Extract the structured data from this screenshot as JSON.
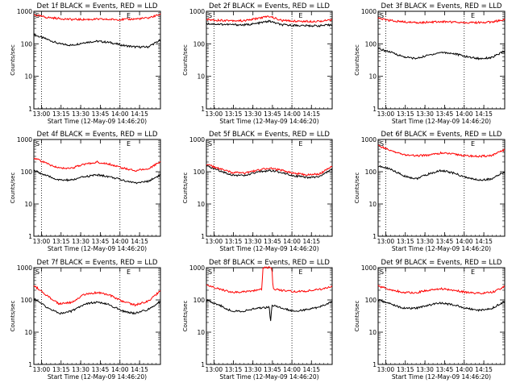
{
  "page": {
    "colors": {
      "events": "#000000",
      "lld": "#ff0000",
      "axis": "#000000",
      "background": "#ffffff"
    },
    "grid": "vertical-dotted-at-13:00-and-16:00"
  },
  "chart_data": [
    {
      "type": "line",
      "title": "Det 1f BLACK = Events, RED = LLD",
      "xlabel": "Start Time (12-May-09 14:46:20)",
      "ylabel": "Counts/sec",
      "yscale": "log",
      "ylim": [
        1,
        1000
      ],
      "ytick_labels": [
        "1",
        "10",
        "100",
        "1000"
      ],
      "xtick_labels": [
        "13:00",
        "13:15",
        "13:30",
        "13:45",
        "14:00",
        "14:15"
      ],
      "x_markers": [
        "S",
        "E"
      ],
      "series": [
        {
          "name": "Events",
          "color": "#000000",
          "x": [
            0,
            0.1,
            0.2,
            0.3,
            0.4,
            0.5,
            0.6,
            0.7,
            0.8,
            0.9,
            1
          ],
          "values": [
            190,
            140,
            100,
            90,
            110,
            120,
            110,
            90,
            80,
            80,
            130
          ]
        },
        {
          "name": "LLD",
          "color": "#ff0000",
          "x": [
            0,
            0.1,
            0.2,
            0.3,
            0.4,
            0.5,
            0.6,
            0.7,
            0.8,
            0.9,
            1
          ],
          "values": [
            780,
            650,
            600,
            560,
            560,
            570,
            560,
            560,
            580,
            620,
            800
          ]
        }
      ]
    },
    {
      "type": "line",
      "title": "Det 2f BLACK = Events, RED = LLD",
      "xlabel": "Start Time (12-May-09 14:46:20)",
      "ylabel": "Counts/sec",
      "yscale": "log",
      "ylim": [
        1,
        1000
      ],
      "ytick_labels": [
        "1",
        "10",
        "100",
        "1000"
      ],
      "xtick_labels": [
        "13:00",
        "13:15",
        "13:30",
        "13:45",
        "14:00",
        "14:15"
      ],
      "x_markers": [
        "S",
        "E"
      ],
      "series": [
        {
          "name": "Events",
          "color": "#000000",
          "x": [
            0,
            0.1,
            0.2,
            0.3,
            0.4,
            0.5,
            0.6,
            0.7,
            0.8,
            0.9,
            1
          ],
          "values": [
            420,
            400,
            390,
            380,
            420,
            500,
            380,
            370,
            360,
            360,
            380
          ]
        },
        {
          "name": "LLD",
          "color": "#ff0000",
          "x": [
            0,
            0.1,
            0.2,
            0.3,
            0.4,
            0.5,
            0.6,
            0.7,
            0.8,
            0.9,
            1
          ],
          "values": [
            560,
            530,
            520,
            510,
            600,
            700,
            520,
            500,
            490,
            500,
            540
          ]
        }
      ]
    },
    {
      "type": "line",
      "title": "Det 3f BLACK = Events, RED = LLD",
      "xlabel": "Start Time (12-May-09 14:46:20)",
      "ylabel": "Counts/sec",
      "yscale": "log",
      "ylim": [
        1,
        1000
      ],
      "ytick_labels": [
        "1",
        "10",
        "100",
        "1000"
      ],
      "xtick_labels": [
        "13:00",
        "13:15",
        "13:30",
        "13:45",
        "14:00",
        "14:15"
      ],
      "x_markers": [
        "S",
        "E"
      ],
      "series": [
        {
          "name": "Events",
          "color": "#000000",
          "x": [
            0,
            0.1,
            0.2,
            0.3,
            0.4,
            0.5,
            0.6,
            0.7,
            0.8,
            0.9,
            1
          ],
          "values": [
            70,
            55,
            40,
            35,
            45,
            55,
            50,
            40,
            35,
            38,
            60
          ]
        },
        {
          "name": "LLD",
          "color": "#ff0000",
          "x": [
            0,
            0.1,
            0.2,
            0.3,
            0.4,
            0.5,
            0.6,
            0.7,
            0.8,
            0.9,
            1
          ],
          "values": [
            600,
            520,
            470,
            450,
            460,
            480,
            470,
            450,
            450,
            470,
            560
          ]
        }
      ]
    },
    {
      "type": "line",
      "title": "Det 4f BLACK = Events, RED = LLD",
      "xlabel": "Start Time (12-May-09 14:46:20)",
      "ylabel": "Counts/sec",
      "yscale": "log",
      "ylim": [
        1,
        1000
      ],
      "ytick_labels": [
        "1",
        "10",
        "100",
        "1000"
      ],
      "xtick_labels": [
        "13:00",
        "13:15",
        "13:30",
        "13:45",
        "14:00",
        "14:15"
      ],
      "x_markers": [
        "S",
        "E"
      ],
      "series": [
        {
          "name": "Events",
          "color": "#000000",
          "x": [
            0,
            0.1,
            0.2,
            0.3,
            0.4,
            0.5,
            0.6,
            0.7,
            0.8,
            0.9,
            1
          ],
          "values": [
            110,
            75,
            55,
            55,
            70,
            80,
            70,
            55,
            45,
            50,
            80
          ]
        },
        {
          "name": "LLD",
          "color": "#ff0000",
          "x": [
            0,
            0.1,
            0.2,
            0.3,
            0.4,
            0.5,
            0.6,
            0.7,
            0.8,
            0.9,
            1
          ],
          "values": [
            270,
            180,
            130,
            130,
            170,
            200,
            170,
            130,
            110,
            120,
            210
          ]
        }
      ]
    },
    {
      "type": "line",
      "title": "Det 5f BLACK = Events, RED = LLD",
      "xlabel": "Start Time (12-May-09 14:46:20)",
      "ylabel": "Counts/sec",
      "yscale": "log",
      "ylim": [
        1,
        1000
      ],
      "ytick_labels": [
        "1",
        "10",
        "100",
        "1000"
      ],
      "xtick_labels": [
        "13:00",
        "13:15",
        "13:30",
        "13:45",
        "14:00",
        "14:15"
      ],
      "x_markers": [
        "S",
        "E"
      ],
      "series": [
        {
          "name": "Events",
          "color": "#000000",
          "x": [
            0,
            0.1,
            0.2,
            0.3,
            0.4,
            0.5,
            0.6,
            0.7,
            0.8,
            0.9,
            1
          ],
          "values": [
            150,
            110,
            80,
            75,
            95,
            110,
            95,
            75,
            65,
            70,
            120
          ]
        },
        {
          "name": "LLD",
          "color": "#ff0000",
          "x": [
            0,
            0.1,
            0.2,
            0.3,
            0.4,
            0.5,
            0.6,
            0.7,
            0.8,
            0.9,
            1
          ],
          "values": [
            170,
            125,
            95,
            90,
            110,
            130,
            110,
            90,
            80,
            85,
            150
          ]
        }
      ]
    },
    {
      "type": "line",
      "title": "Det 6f BLACK = Events, RED = LLD",
      "xlabel": "Start Time (12-May-09 14:46:20)",
      "ylabel": "Counts/sec",
      "yscale": "log",
      "ylim": [
        1,
        1000
      ],
      "ytick_labels": [
        "1",
        "10",
        "100",
        "1000"
      ],
      "xtick_labels": [
        "13:00",
        "13:15",
        "13:30",
        "13:45",
        "14:00",
        "14:15"
      ],
      "x_markers": [
        "S",
        "E"
      ],
      "series": [
        {
          "name": "Events",
          "color": "#000000",
          "x": [
            0,
            0.1,
            0.2,
            0.3,
            0.4,
            0.5,
            0.6,
            0.7,
            0.8,
            0.9,
            1
          ],
          "values": [
            150,
            120,
            75,
            60,
            85,
            110,
            90,
            65,
            55,
            60,
            100
          ]
        },
        {
          "name": "LLD",
          "color": "#ff0000",
          "x": [
            0,
            0.1,
            0.2,
            0.3,
            0.4,
            0.5,
            0.6,
            0.7,
            0.8,
            0.9,
            1
          ],
          "values": [
            650,
            450,
            340,
            310,
            330,
            380,
            350,
            310,
            300,
            320,
            480
          ]
        }
      ]
    },
    {
      "type": "line",
      "title": "Det 7f BLACK = Events, RED = LLD",
      "xlabel": "Start Time (12-May-09 14:46:20)",
      "ylabel": "Counts/sec",
      "yscale": "log",
      "ylim": [
        1,
        1000
      ],
      "ytick_labels": [
        "1",
        "10",
        "100",
        "1000"
      ],
      "xtick_labels": [
        "13:00",
        "13:15",
        "13:30",
        "13:45",
        "14:00",
        "14:15"
      ],
      "x_markers": [
        "S",
        "E"
      ],
      "series": [
        {
          "name": "Events",
          "color": "#000000",
          "x": [
            0,
            0.1,
            0.2,
            0.3,
            0.4,
            0.5,
            0.6,
            0.7,
            0.8,
            0.9,
            1
          ],
          "values": [
            110,
            60,
            38,
            45,
            75,
            85,
            70,
            45,
            38,
            50,
            90
          ]
        },
        {
          "name": "LLD",
          "color": "#ff0000",
          "x": [
            0,
            0.1,
            0.2,
            0.3,
            0.4,
            0.5,
            0.6,
            0.7,
            0.8,
            0.9,
            1
          ],
          "values": [
            280,
            140,
            75,
            85,
            150,
            170,
            140,
            90,
            70,
            90,
            190
          ]
        }
      ]
    },
    {
      "type": "line",
      "title": "Det 8f BLACK = Events, RED = LLD",
      "xlabel": "Start Time (12-May-09 14:46:20)",
      "ylabel": "Counts/sec",
      "yscale": "log",
      "ylim": [
        1,
        1000
      ],
      "ytick_labels": [
        "1",
        "10",
        "100",
        "1000"
      ],
      "xtick_labels": [
        "13:00",
        "13:15",
        "13:30",
        "13:45",
        "14:00",
        "14:15"
      ],
      "x_markers": [
        "S",
        "E"
      ],
      "series": [
        {
          "name": "Events",
          "color": "#000000",
          "x": [
            0,
            0.1,
            0.2,
            0.3,
            0.4,
            0.5,
            0.51,
            0.52,
            0.6,
            0.7,
            0.8,
            0.9,
            1
          ],
          "values": [
            100,
            70,
            45,
            45,
            55,
            60,
            20,
            70,
            55,
            45,
            50,
            60,
            90
          ]
        },
        {
          "name": "LLD",
          "color": "#ff0000",
          "x": [
            0,
            0.1,
            0.2,
            0.3,
            0.4,
            0.44,
            0.45,
            0.52,
            0.53,
            0.6,
            0.7,
            0.8,
            0.9,
            1
          ],
          "values": [
            280,
            220,
            170,
            180,
            200,
            210,
            1000,
            1000,
            220,
            200,
            180,
            190,
            210,
            260
          ]
        }
      ]
    },
    {
      "type": "line",
      "title": "Det 9f BLACK = Events, RED = LLD",
      "xlabel": "Start Time (12-May-09 14:46:20)",
      "ylabel": "Counts/sec",
      "yscale": "log",
      "ylim": [
        1,
        1000
      ],
      "ytick_labels": [
        "1",
        "10",
        "100",
        "1000"
      ],
      "xtick_labels": [
        "13:00",
        "13:15",
        "13:30",
        "13:45",
        "14:00",
        "14:15"
      ],
      "x_markers": [
        "S",
        "E"
      ],
      "series": [
        {
          "name": "Events",
          "color": "#000000",
          "x": [
            0,
            0.1,
            0.2,
            0.3,
            0.4,
            0.5,
            0.6,
            0.7,
            0.8,
            0.9,
            1
          ],
          "values": [
            100,
            75,
            55,
            55,
            70,
            80,
            70,
            55,
            48,
            55,
            90
          ]
        },
        {
          "name": "LLD",
          "color": "#ff0000",
          "x": [
            0,
            0.1,
            0.2,
            0.3,
            0.4,
            0.5,
            0.6,
            0.7,
            0.8,
            0.9,
            1
          ],
          "values": [
            270,
            210,
            170,
            170,
            200,
            220,
            200,
            170,
            160,
            170,
            260
          ]
        }
      ]
    }
  ]
}
